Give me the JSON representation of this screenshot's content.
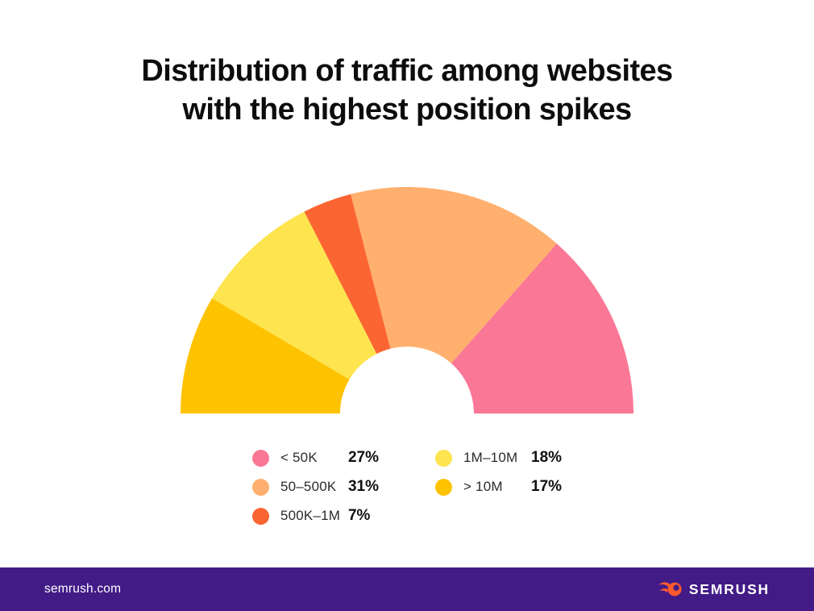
{
  "title": {
    "line1": "Distribution of traffic among websites",
    "line2": "with the highest position spikes"
  },
  "chart_data": {
    "type": "pie",
    "variant": "half-donut",
    "title": "Distribution of traffic among websites with the highest position spikes",
    "categories": [
      "< 50K",
      "50–500K",
      "500K–1M",
      "1M–10M",
      "> 10M"
    ],
    "values": [
      27,
      31,
      7,
      18,
      17
    ],
    "unit": "%",
    "colors": [
      "#FA7795",
      "#FFB06E",
      "#FB6532",
      "#FEE44E",
      "#FEC300"
    ],
    "start_side": "right",
    "direction": "counterclockwise",
    "inner_radius_ratio": 0.295,
    "legend_position": "bottom"
  },
  "legend": {
    "columns": [
      {
        "items": [
          {
            "label": "< 50K",
            "value": "27%",
            "color": "#FA7795"
          },
          {
            "label": "50–500K",
            "value": "31%",
            "color": "#FFB06E"
          },
          {
            "label": "500K–1M",
            "value": "7%",
            "color": "#FB6532"
          }
        ]
      },
      {
        "items": [
          {
            "label": "1M–10M",
            "value": "18%",
            "color": "#FEE44E"
          },
          {
            "label": "> 10M",
            "value": "17%",
            "color": "#FEC300"
          }
        ]
      }
    ]
  },
  "footer": {
    "source": "semrush.com",
    "brand": "SEMRUSH",
    "background": "#421B87",
    "logo_orange": "#FF5A2D",
    "logo_dot": "#421B87"
  }
}
